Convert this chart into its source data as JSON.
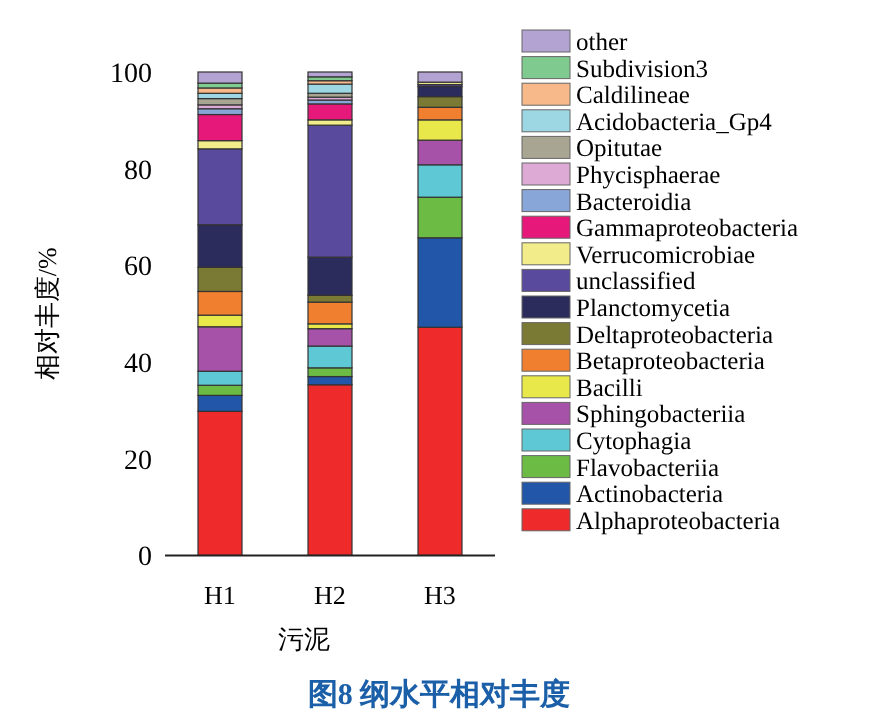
{
  "chart_data": {
    "type": "bar",
    "stacked": true,
    "title": "图8 纲水平相对丰度",
    "xlabel": "污泥",
    "ylabel": "相对丰度/%",
    "categories": [
      "H1",
      "H2",
      "H3"
    ],
    "ylim": [
      0,
      100
    ],
    "yticks": [
      0,
      20,
      40,
      60,
      80,
      100
    ],
    "legend": "right",
    "grid": false,
    "series": [
      {
        "name": "Alphaproteobacteria",
        "color": "#ee2a2a",
        "values": [
          29.8,
          35.3,
          47.2
        ]
      },
      {
        "name": "Actinobacteria",
        "color": "#2156a8",
        "values": [
          3.3,
          1.7,
          18.5
        ]
      },
      {
        "name": "Flavobacteriia",
        "color": "#6cbb44",
        "values": [
          2.1,
          1.8,
          8.4
        ]
      },
      {
        "name": "Cytophagia",
        "color": "#5ec8d4",
        "values": [
          2.9,
          4.5,
          6.7
        ]
      },
      {
        "name": "Sphingobacteriia",
        "color": "#a552a8",
        "values": [
          9.2,
          3.6,
          5.1
        ]
      },
      {
        "name": "Bacilli",
        "color": "#e8e84a",
        "values": [
          2.4,
          1.0,
          4.2
        ]
      },
      {
        "name": "Betaproteobacteria",
        "color": "#f08030",
        "values": [
          4.9,
          4.5,
          2.6
        ]
      },
      {
        "name": "Deltaproteobacteria",
        "color": "#7b7a34",
        "values": [
          5.0,
          1.4,
          2.2
        ]
      },
      {
        "name": "Planctomycetia",
        "color": "#2c2c5c",
        "values": [
          8.8,
          7.9,
          2.1
        ]
      },
      {
        "name": "unclassified",
        "color": "#5a4a9e",
        "values": [
          15.7,
          27.3,
          0.4
        ]
      },
      {
        "name": "Verrucomicrobiae",
        "color": "#f2ec8b",
        "values": [
          1.7,
          1.1,
          0.5
        ]
      },
      {
        "name": "Gammaproteobacteria",
        "color": "#e6197a",
        "values": [
          5.4,
          3.3,
          null
        ]
      },
      {
        "name": "Bacteroidia",
        "color": "#88a6d8",
        "values": [
          1.2,
          0.8,
          null
        ]
      },
      {
        "name": "Phycisphaerae",
        "color": "#dcaad5",
        "values": [
          0.8,
          0.6,
          null
        ]
      },
      {
        "name": "Opitutae",
        "color": "#a8a593",
        "values": [
          1.3,
          0.8,
          null
        ]
      },
      {
        "name": "Acidobacteria_Gp4",
        "color": "#9ed7e4",
        "values": [
          1.1,
          1.9,
          null
        ]
      },
      {
        "name": "Caldilineae",
        "color": "#f8b98a",
        "values": [
          1.1,
          0.7,
          null
        ]
      },
      {
        "name": "Subdivision3",
        "color": "#7fcb8f",
        "values": [
          1.0,
          0.8,
          null
        ]
      },
      {
        "name": "other",
        "color": "#b3a3d3",
        "values": [
          2.3,
          1.0,
          2.1
        ]
      }
    ]
  }
}
